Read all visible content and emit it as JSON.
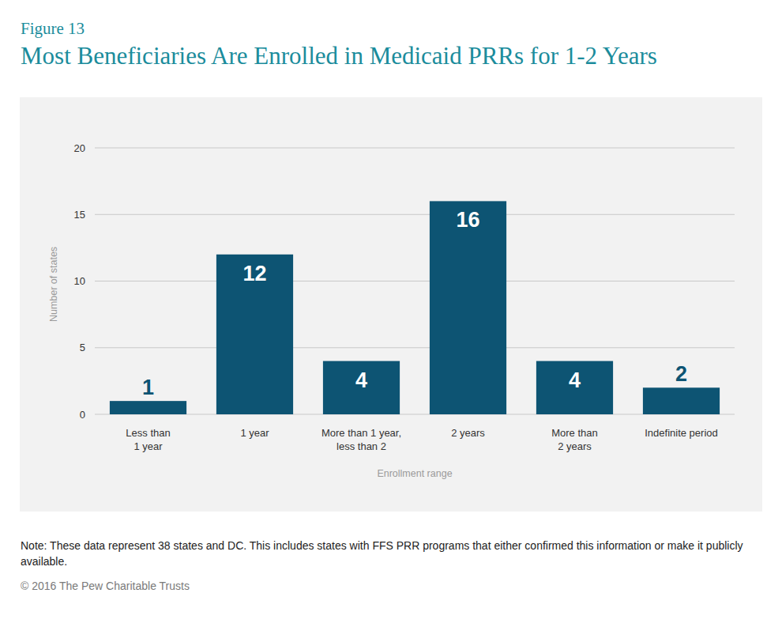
{
  "chart_data": {
    "type": "bar",
    "figure_number": "Figure 13",
    "title": "Most Beneficiaries Are Enrolled in Medicaid PRRs for 1-2 Years",
    "y_label": "Number of states",
    "x_label": "Enrollment range",
    "categories": [
      "Less than\n1 year",
      "1 year",
      "More than 1 year,\nless than 2",
      "2 years",
      "More than\n2 years",
      "Indefinite period"
    ],
    "values": [
      1,
      12,
      4,
      16,
      4,
      2
    ],
    "color": "#0d5473",
    "ylim": [
      0,
      20
    ],
    "yticks": [
      0,
      5,
      10,
      15,
      20
    ],
    "grid": true,
    "data_labels": true,
    "note": "Note: These data represent 38 states and DC. This includes states with FFS PRR programs that either confirmed this information or make it publicly available.",
    "source": "© 2016 The Pew Charitable Trusts"
  }
}
